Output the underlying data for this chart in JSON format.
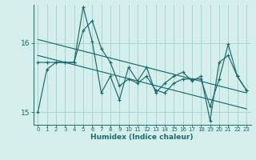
{
  "xlabel": "Humidex (Indice chaleur)",
  "bg_color": "#d4eeec",
  "grid_color": "#a8d4d0",
  "line_color": "#1a6b6b",
  "xlim": [
    -0.5,
    23.5
  ],
  "ylim": [
    14.82,
    16.55
  ],
  "yticks": [
    15,
    16
  ],
  "xticks": [
    0,
    1,
    2,
    3,
    4,
    5,
    6,
    7,
    8,
    9,
    10,
    11,
    12,
    13,
    14,
    15,
    16,
    17,
    18,
    19,
    20,
    21,
    22,
    23
  ],
  "series1": [
    15.0,
    15.62,
    15.72,
    15.72,
    15.72,
    16.18,
    16.32,
    15.92,
    15.72,
    15.38,
    15.48,
    15.42,
    15.52,
    15.32,
    15.28,
    15.42,
    15.48,
    15.48,
    15.48,
    15.08,
    15.48,
    15.98,
    15.52,
    15.32
  ],
  "series2": [
    15.72,
    15.72,
    15.72,
    15.72,
    15.72,
    16.52,
    16.02,
    15.28,
    15.52,
    15.18,
    15.65,
    15.45,
    15.65,
    15.28,
    15.42,
    15.52,
    15.58,
    15.45,
    15.52,
    14.88,
    15.72,
    15.82,
    15.52,
    15.32
  ],
  "trend1_x": [
    0,
    23
  ],
  "trend1_y": [
    16.05,
    15.28
  ],
  "trend2_x": [
    0,
    23
  ],
  "trend2_y": [
    15.82,
    15.05
  ]
}
